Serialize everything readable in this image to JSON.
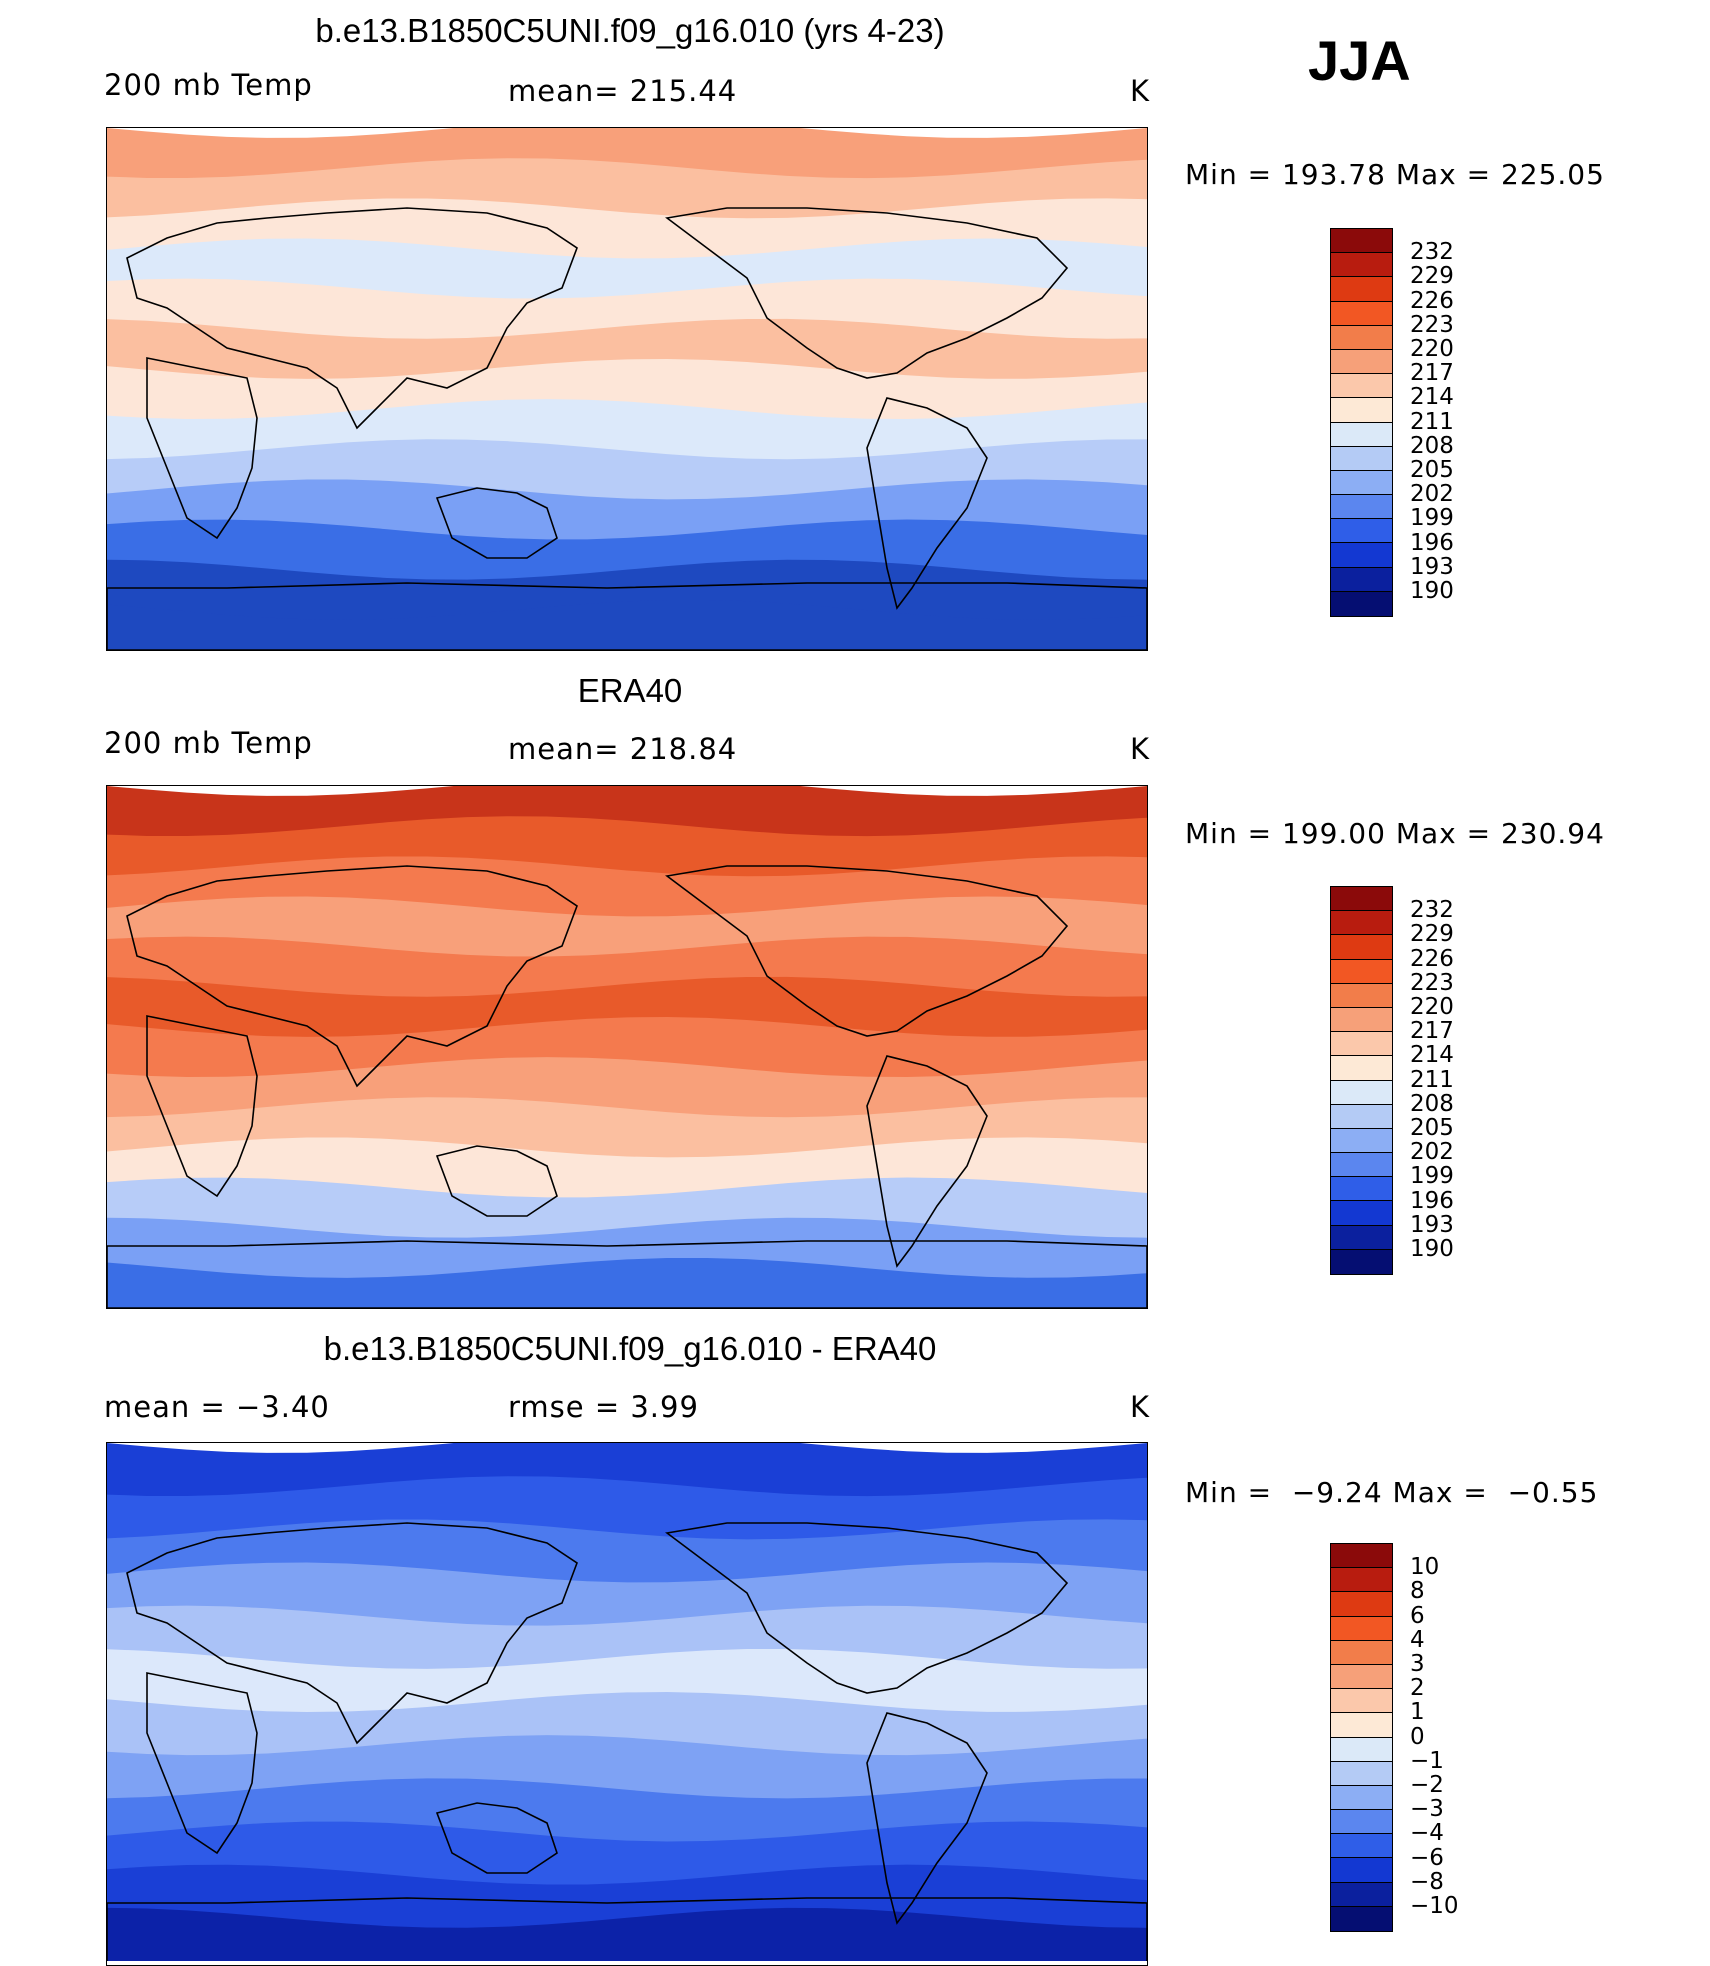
{
  "season": "JJA",
  "panels": [
    {
      "title": "b.e13.B1850C5UNI.f09_g16.010 (yrs 4-23)",
      "left_label": "200 mb Temp",
      "mid_label": "mean= 215.44",
      "units": "K",
      "minmax": "Min = 193.78 Max = 225.05",
      "colors": [
        "#1e49c0",
        "#3a6ee6",
        "#7aa0f5",
        "#b7ccf8",
        "#dce9fa",
        "#fde6d8",
        "#fbbfa0",
        "#f8a07a",
        "#f47a4e"
      ],
      "cbar_labels": [
        "232",
        "229",
        "226",
        "223",
        "220",
        "217",
        "214",
        "211",
        "208",
        "205",
        "202",
        "199",
        "196",
        "193",
        "190"
      ],
      "cbar_colors": [
        "#8b0a0a",
        "#b81c0f",
        "#de3a12",
        "#f25723",
        "#f27d4a",
        "#f6a079",
        "#fbc8ab",
        "#fde9d6",
        "#dbe9f8",
        "#b4cbf5",
        "#8caef4",
        "#5b86ef",
        "#2f5ee8",
        "#1338d2",
        "#0b209e",
        "#050e72"
      ]
    },
    {
      "title": "ERA40",
      "left_label": "200 mb Temp",
      "mid_label": "mean= 218.84",
      "units": "K",
      "minmax": "Min = 199.00 Max = 230.94",
      "colors": [
        "#3a6ee6",
        "#7aa0f5",
        "#b7ccf8",
        "#fde6d8",
        "#fbbfa0",
        "#f8a07a",
        "#f47a4e",
        "#e85a2a",
        "#c8341a"
      ],
      "cbar_labels": [
        "232",
        "229",
        "226",
        "223",
        "220",
        "217",
        "214",
        "211",
        "208",
        "205",
        "202",
        "199",
        "196",
        "193",
        "190"
      ],
      "cbar_colors": [
        "#8b0a0a",
        "#b81c0f",
        "#de3a12",
        "#f25723",
        "#f27d4a",
        "#f6a079",
        "#fbc8ab",
        "#fde9d6",
        "#dbe9f8",
        "#b4cbf5",
        "#8caef4",
        "#5b86ef",
        "#2f5ee8",
        "#1338d2",
        "#0b209e",
        "#050e72"
      ]
    },
    {
      "title": "b.e13.B1850C5UNI.f09_g16.010 - ERA40",
      "left_label": "mean =   −3.40",
      "mid_label": "rmse =    3.99",
      "units": "K",
      "minmax": "Min =  −9.24 Max =  −0.55",
      "colors": [
        "#0c22a8",
        "#1a3fd6",
        "#2e5ae8",
        "#4c7aee",
        "#7ea2f4",
        "#aac2f7",
        "#dce8fb"
      ],
      "cbar_labels": [
        "10",
        "8",
        "6",
        "4",
        "3",
        "2",
        "1",
        "0",
        "−1",
        "−2",
        "−3",
        "−4",
        "−6",
        "−8",
        "−10"
      ],
      "cbar_colors": [
        "#8b0a0a",
        "#b81c0f",
        "#de3a12",
        "#f25723",
        "#f27d4a",
        "#f6a079",
        "#fbc8ab",
        "#fde9d6",
        "#dbe9f8",
        "#b4cbf5",
        "#8caef4",
        "#5b86ef",
        "#2f5ee8",
        "#1338d2",
        "#0b209e",
        "#050e72"
      ]
    }
  ]
}
